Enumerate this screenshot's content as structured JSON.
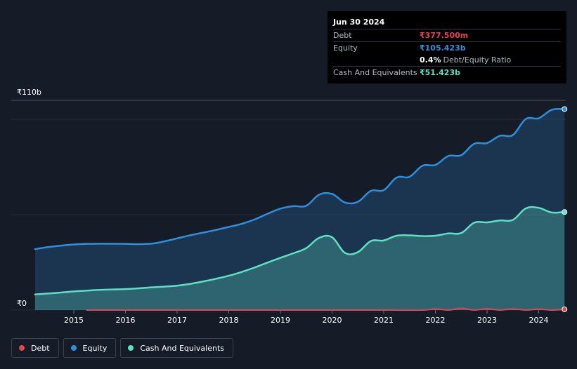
{
  "chart_data": {
    "type": "area",
    "title": "",
    "xlabel": "",
    "ylabel": "",
    "y_unit_labels": {
      "top": "₹110b",
      "bottom": "₹0"
    },
    "ylim": [
      0,
      110
    ],
    "xlim": [
      2014.25,
      2024.5
    ],
    "x_ticks": [
      2015,
      2016,
      2017,
      2018,
      2019,
      2020,
      2021,
      2022,
      2023,
      2024
    ],
    "x_tick_labels": [
      "2015",
      "2016",
      "2017",
      "2018",
      "2019",
      "2020",
      "2021",
      "2022",
      "2023",
      "2024"
    ],
    "grid": "horizontal",
    "series": [
      {
        "name": "Equity",
        "color": "#2f8fdc",
        "points": [
          [
            2014.25,
            32.0
          ],
          [
            2014.5,
            33.0
          ],
          [
            2014.75,
            33.8
          ],
          [
            2015.0,
            34.4
          ],
          [
            2015.25,
            34.7
          ],
          [
            2015.5,
            34.8
          ],
          [
            2016.0,
            34.7
          ],
          [
            2016.25,
            34.6
          ],
          [
            2016.5,
            34.8
          ],
          [
            2016.75,
            36.0
          ],
          [
            2017.0,
            37.6
          ],
          [
            2017.25,
            39.2
          ],
          [
            2017.5,
            40.6
          ],
          [
            2017.75,
            42.0
          ],
          [
            2018.0,
            43.6
          ],
          [
            2018.25,
            45.2
          ],
          [
            2018.5,
            47.5
          ],
          [
            2018.75,
            50.5
          ],
          [
            2019.0,
            53.2
          ],
          [
            2019.25,
            54.5
          ],
          [
            2019.5,
            54.7
          ],
          [
            2019.75,
            60.5
          ],
          [
            2020.0,
            60.9
          ],
          [
            2020.25,
            56.4
          ],
          [
            2020.5,
            56.8
          ],
          [
            2020.75,
            62.5
          ],
          [
            2021.0,
            62.9
          ],
          [
            2021.25,
            69.5
          ],
          [
            2021.5,
            69.9
          ],
          [
            2021.75,
            75.7
          ],
          [
            2022.0,
            76.1
          ],
          [
            2022.25,
            80.8
          ],
          [
            2022.5,
            81.2
          ],
          [
            2022.75,
            87.2
          ],
          [
            2023.0,
            87.6
          ],
          [
            2023.25,
            91.4
          ],
          [
            2023.5,
            91.8
          ],
          [
            2023.75,
            100.2
          ],
          [
            2024.0,
            100.6
          ],
          [
            2024.25,
            105.0
          ],
          [
            2024.5,
            105.423
          ]
        ]
      },
      {
        "name": "Cash And Equivalents",
        "color": "#5ee0c5",
        "points": [
          [
            2014.25,
            8.2
          ],
          [
            2014.5,
            8.7
          ],
          [
            2014.75,
            9.2
          ],
          [
            2015.0,
            9.8
          ],
          [
            2015.25,
            10.2
          ],
          [
            2015.5,
            10.6
          ],
          [
            2016.0,
            11.0
          ],
          [
            2016.25,
            11.4
          ],
          [
            2016.5,
            11.9
          ],
          [
            2016.75,
            12.3
          ],
          [
            2017.0,
            12.8
          ],
          [
            2017.25,
            13.7
          ],
          [
            2017.5,
            15.0
          ],
          [
            2017.75,
            16.4
          ],
          [
            2018.0,
            18.0
          ],
          [
            2018.25,
            20.0
          ],
          [
            2018.5,
            22.3
          ],
          [
            2018.75,
            24.9
          ],
          [
            2019.0,
            27.4
          ],
          [
            2019.25,
            29.8
          ],
          [
            2019.5,
            32.5
          ],
          [
            2019.75,
            37.9
          ],
          [
            2020.0,
            38.2
          ],
          [
            2020.25,
            30.0
          ],
          [
            2020.5,
            30.4
          ],
          [
            2020.75,
            36.2
          ],
          [
            2021.0,
            36.5
          ],
          [
            2021.25,
            39.0
          ],
          [
            2021.5,
            39.2
          ],
          [
            2021.75,
            38.8
          ],
          [
            2022.0,
            39.0
          ],
          [
            2022.25,
            40.2
          ],
          [
            2022.5,
            40.4
          ],
          [
            2022.75,
            45.8
          ],
          [
            2023.0,
            46.0
          ],
          [
            2023.25,
            47.0
          ],
          [
            2023.5,
            47.3
          ],
          [
            2023.75,
            53.3
          ],
          [
            2024.0,
            53.6
          ],
          [
            2024.25,
            51.2
          ],
          [
            2024.5,
            51.423
          ]
        ]
      },
      {
        "name": "Debt",
        "color": "#e0474f",
        "points": [
          [
            2015.25,
            0.0
          ],
          [
            2016.0,
            0.0
          ],
          [
            2017.0,
            0.0
          ],
          [
            2018.0,
            0.0
          ],
          [
            2019.0,
            0.0
          ],
          [
            2020.0,
            0.0
          ],
          [
            2021.0,
            0.0
          ],
          [
            2021.75,
            0.0
          ],
          [
            2022.0,
            0.6
          ],
          [
            2022.25,
            0.0
          ],
          [
            2022.5,
            0.9
          ],
          [
            2022.75,
            0.0
          ],
          [
            2023.0,
            0.7
          ],
          [
            2023.25,
            0.0
          ],
          [
            2023.5,
            0.6
          ],
          [
            2023.75,
            0.0
          ],
          [
            2024.0,
            0.5
          ],
          [
            2024.25,
            0.0
          ],
          [
            2024.5,
            0.378
          ]
        ]
      }
    ],
    "tooltip": {
      "date": "Jun 30 2024",
      "rows": [
        {
          "label": "Debt",
          "value": "₹377.500m",
          "color": "#e0474f"
        },
        {
          "label": "Equity",
          "value": "₹105.423b",
          "color": "#2f8fdc"
        },
        {
          "label": "",
          "value": "0.4%",
          "suffix": "Debt/Equity Ratio",
          "color": "#ffffff"
        },
        {
          "label": "Cash And Equivalents",
          "value": "₹51.423b",
          "color": "#5ee0c5"
        }
      ]
    },
    "legend": [
      {
        "label": "Debt",
        "color": "#e0474f"
      },
      {
        "label": "Equity",
        "color": "#2f8fdc"
      },
      {
        "label": "Cash And Equivalents",
        "color": "#5ee0c5"
      }
    ],
    "legend_position": "bottom-left"
  }
}
